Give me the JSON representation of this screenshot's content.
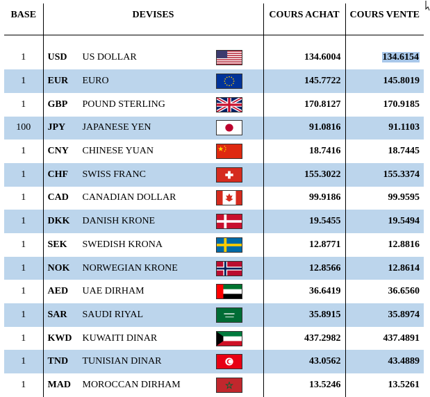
{
  "headers": {
    "base": "BASE",
    "devises": "DEVISES",
    "achat": "COURS ACHAT",
    "vente": "COURS VENTE"
  },
  "rows": [
    {
      "base": "1",
      "code": "USD",
      "name": "US DOLLAR",
      "flag": "us-flag-icon",
      "achat": "134.6004",
      "vente": "134.6154"
    },
    {
      "base": "1",
      "code": "EUR",
      "name": "EURO",
      "flag": "eu-flag-icon",
      "achat": "145.7722",
      "vente": "145.8019"
    },
    {
      "base": "1",
      "code": "GBP",
      "name": "POUND STERLING",
      "flag": "uk-flag-icon",
      "achat": "170.8127",
      "vente": "170.9185"
    },
    {
      "base": "100",
      "code": "JPY",
      "name": "JAPANESE YEN",
      "flag": "japan-flag-icon",
      "achat": "91.0816",
      "vente": "91.1103"
    },
    {
      "base": "1",
      "code": "CNY",
      "name": "CHINESE YUAN",
      "flag": "china-flag-icon",
      "achat": "18.7416",
      "vente": "18.7445"
    },
    {
      "base": "1",
      "code": "CHF",
      "name": "SWISS FRANC",
      "flag": "swiss-flag-icon",
      "achat": "155.3022",
      "vente": "155.3374"
    },
    {
      "base": "1",
      "code": "CAD",
      "name": "CANADIAN DOLLAR",
      "flag": "canada-flag-icon",
      "achat": "99.9186",
      "vente": "99.9595"
    },
    {
      "base": "1",
      "code": "DKK",
      "name": "DANISH KRONE",
      "flag": "denmark-flag-icon",
      "achat": "19.5455",
      "vente": "19.5494"
    },
    {
      "base": "1",
      "code": "SEK",
      "name": "SWEDISH KRONA",
      "flag": "sweden-flag-icon",
      "achat": "12.8771",
      "vente": "12.8816"
    },
    {
      "base": "1",
      "code": "NOK",
      "name": "NORWEGIAN KRONE",
      "flag": "norway-flag-icon",
      "achat": "12.8566",
      "vente": "12.8614"
    },
    {
      "base": "1",
      "code": "AED",
      "name": "UAE DIRHAM",
      "flag": "uae-flag-icon",
      "achat": "36.6419",
      "vente": "36.6560"
    },
    {
      "base": "1",
      "code": "SAR",
      "name": "SAUDI RIYAL",
      "flag": "saudi-flag-icon",
      "achat": "35.8915",
      "vente": "35.8974"
    },
    {
      "base": "1",
      "code": "KWD",
      "name": "KUWAITI DINAR",
      "flag": "kuwait-flag-icon",
      "achat": "437.2982",
      "vente": "437.4891"
    },
    {
      "base": "1",
      "code": "TND",
      "name": "TUNISIAN DINAR",
      "flag": "tunisia-flag-icon",
      "achat": "43.0562",
      "vente": "43.4889"
    },
    {
      "base": "1",
      "code": "MAD",
      "name": "MOROCCAN DIRHAM",
      "flag": "morocco-flag-icon",
      "achat": "13.5246",
      "vente": "13.5261"
    }
  ],
  "colors": {
    "row_alt": "#bcd5ec",
    "selection": "#a9c8ea"
  }
}
